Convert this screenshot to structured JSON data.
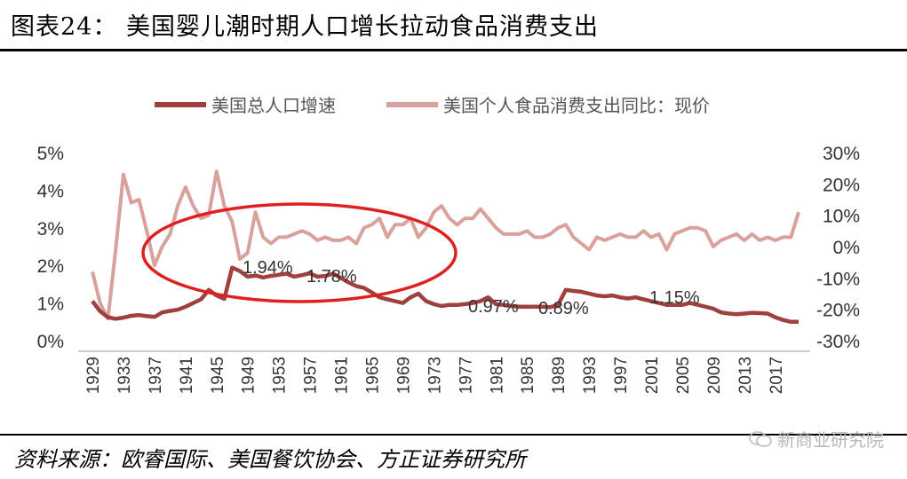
{
  "header": {
    "title": "图表24：  美国婴儿潮时期人口增长拉动食品消费支出"
  },
  "footer": {
    "source": "资料来源：欧睿国际、美国餐饮协会、方正证券研究所",
    "watermark": "新商业研究院"
  },
  "chart_data": {
    "type": "line",
    "x_tick_labels": [
      "1929",
      "1933",
      "1937",
      "1941",
      "1945",
      "1949",
      "1953",
      "1957",
      "1961",
      "1965",
      "1969",
      "1973",
      "1977",
      "1981",
      "1985",
      "1989",
      "1993",
      "1997",
      "2001",
      "2005",
      "2009",
      "2013",
      "2017"
    ],
    "left_axis": {
      "ticks": [
        "5%",
        "4%",
        "3%",
        "2%",
        "1%",
        "0%"
      ],
      "ylim": [
        0,
        5
      ]
    },
    "right_axis": {
      "ticks": [
        "30%",
        "20%",
        "10%",
        "0%",
        "-10%",
        "-20%",
        "-30%"
      ],
      "ylim": [
        -30,
        30
      ]
    },
    "legend_position": "top",
    "series": [
      {
        "name": "美国总人口增速",
        "axis": "left",
        "color": "#a0403e",
        "x": [
          1929,
          1930,
          1931,
          1932,
          1933,
          1934,
          1935,
          1936,
          1937,
          1938,
          1939,
          1940,
          1941,
          1942,
          1943,
          1944,
          1945,
          1946,
          1947,
          1948,
          1949,
          1950,
          1951,
          1952,
          1953,
          1954,
          1955,
          1956,
          1957,
          1958,
          1959,
          1960,
          1961,
          1962,
          1963,
          1964,
          1965,
          1966,
          1967,
          1968,
          1969,
          1970,
          1971,
          1972,
          1973,
          1974,
          1975,
          1976,
          1977,
          1978,
          1979,
          1980,
          1981,
          1982,
          1983,
          1984,
          1985,
          1986,
          1987,
          1988,
          1989,
          1990,
          1991,
          1992,
          1993,
          1994,
          1995,
          1996,
          1997,
          1998,
          1999,
          2000,
          2001,
          2002,
          2003,
          2004,
          2005,
          2006,
          2007,
          2008,
          2009,
          2010,
          2011,
          2012,
          2013,
          2014,
          2015,
          2016,
          2017,
          2018,
          2019,
          2020
        ],
        "values": [
          1.05,
          0.78,
          0.62,
          0.58,
          0.61,
          0.66,
          0.68,
          0.65,
          0.63,
          0.75,
          0.79,
          0.82,
          0.9,
          1.0,
          1.1,
          1.35,
          1.2,
          1.11,
          1.94,
          1.85,
          1.7,
          1.73,
          1.68,
          1.72,
          1.75,
          1.78,
          1.7,
          1.74,
          1.79,
          1.7,
          1.72,
          1.78,
          1.67,
          1.55,
          1.45,
          1.4,
          1.28,
          1.15,
          1.1,
          1.05,
          1.0,
          1.15,
          1.25,
          1.05,
          0.97,
          0.92,
          0.95,
          0.95,
          0.97,
          1.0,
          1.05,
          1.15,
          0.97,
          0.95,
          0.92,
          0.9,
          0.9,
          0.9,
          0.9,
          0.89,
          0.95,
          1.35,
          1.32,
          1.3,
          1.25,
          1.2,
          1.18,
          1.2,
          1.15,
          1.12,
          1.15,
          1.1,
          1.05,
          1.0,
          0.95,
          0.95,
          0.95,
          1.0,
          0.95,
          0.9,
          0.85,
          0.75,
          0.72,
          0.7,
          0.72,
          0.74,
          0.73,
          0.72,
          0.62,
          0.55,
          0.5,
          0.5
        ]
      },
      {
        "name": "美国个人食品消费支出同比：现价",
        "axis": "right",
        "color": "#d9a19c",
        "x": [
          1929,
          1930,
          1931,
          1932,
          1933,
          1934,
          1935,
          1936,
          1937,
          1938,
          1939,
          1940,
          1941,
          1942,
          1943,
          1944,
          1945,
          1946,
          1947,
          1948,
          1949,
          1950,
          1951,
          1952,
          1953,
          1954,
          1955,
          1956,
          1957,
          1958,
          1959,
          1960,
          1961,
          1962,
          1963,
          1964,
          1965,
          1966,
          1967,
          1968,
          1969,
          1970,
          1971,
          1972,
          1973,
          1974,
          1975,
          1976,
          1977,
          1978,
          1979,
          1980,
          1981,
          1982,
          1983,
          1984,
          1985,
          1986,
          1987,
          1988,
          1989,
          1990,
          1991,
          1992,
          1993,
          1994,
          1995,
          1996,
          1997,
          1998,
          1999,
          2000,
          2001,
          2002,
          2003,
          2004,
          2005,
          2006,
          2007,
          2008,
          2009,
          2010,
          2011,
          2012,
          2013,
          2014,
          2015,
          2016,
          2017,
          2018,
          2019,
          2020
        ],
        "values": [
          -8,
          -18,
          -23,
          -1,
          23,
          14,
          15,
          5,
          -6,
          0,
          4,
          13,
          19,
          13,
          9,
          10,
          24,
          13,
          8,
          -4,
          -2,
          11,
          3,
          1,
          3,
          3,
          4,
          5,
          4,
          2,
          3,
          2,
          2,
          3,
          1,
          6,
          7,
          9,
          3,
          7,
          7,
          9,
          3,
          6,
          11,
          13,
          9,
          7,
          9,
          9,
          12,
          9,
          6,
          4,
          4,
          4,
          5,
          3,
          3,
          4,
          6,
          7,
          3,
          1,
          -1,
          3,
          2,
          3,
          4,
          3,
          3,
          5,
          3,
          4,
          -1,
          4,
          5,
          6,
          6,
          5,
          0,
          2,
          3,
          4,
          2,
          4,
          2,
          3,
          2,
          3,
          3,
          11
        ]
      }
    ],
    "annotations": [
      "1.94%",
      "1.78%",
      "0.97%",
      "0.89%",
      "1.15%"
    ]
  }
}
